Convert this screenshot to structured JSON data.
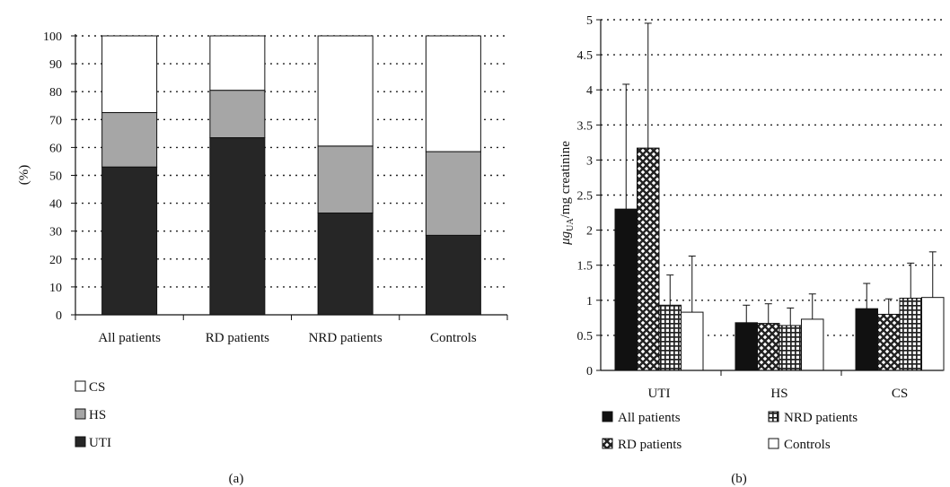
{
  "chart_data": [
    {
      "type": "bar",
      "stacked": true,
      "panel_label": "(a)",
      "ylabel": "(%)",
      "ylim": [
        0,
        100
      ],
      "y_ticks": [
        0,
        10,
        20,
        30,
        40,
        50,
        60,
        70,
        80,
        90,
        100
      ],
      "grid": "horizontal dotted",
      "legend_placement": "below-left",
      "categories": [
        "All patients",
        "RD patients",
        "NRD patients",
        "Controls"
      ],
      "series": [
        {
          "name": "UTI",
          "values": [
            53,
            63.5,
            36.5,
            28.5
          ],
          "fill": "#262626"
        },
        {
          "name": "HS",
          "values": [
            19.5,
            17,
            24,
            30
          ],
          "fill": "#a6a6a6"
        },
        {
          "name": "CS",
          "values": [
            27.5,
            19.5,
            39.5,
            41.5
          ],
          "fill": "#ffffff"
        }
      ],
      "legend_order": [
        "CS",
        "HS",
        "UTI"
      ]
    },
    {
      "type": "bar",
      "stacked": false,
      "panel_label": "(b)",
      "ylabel_main": "μg",
      "ylabel_sub": "UA",
      "ylabel_rest": "/mg creatinine",
      "ylim": [
        0,
        5
      ],
      "y_ticks": [
        "0",
        "0.5",
        "1",
        "1.5",
        "2",
        "2.5",
        "3",
        "3.5",
        "4",
        "4.5",
        "5"
      ],
      "grid": "horizontal dotted",
      "legend_placement": "bottom",
      "categories": [
        "UTI",
        "HS",
        "CS"
      ],
      "series": [
        {
          "name": "All patients",
          "pattern": "solid",
          "values": [
            2.3,
            0.68,
            0.88
          ],
          "errors": [
            1.78,
            0.25,
            0.36
          ]
        },
        {
          "name": "RD patients",
          "pattern": "grid",
          "values": [
            3.17,
            0.67,
            0.8
          ],
          "errors": [
            1.78,
            0.28,
            0.22
          ]
        },
        {
          "name": "NRD patients",
          "pattern": "cross",
          "values": [
            0.93,
            0.64,
            1.03
          ],
          "errors": [
            0.43,
            0.25,
            0.5
          ]
        },
        {
          "name": "Controls",
          "pattern": "none",
          "values": [
            0.83,
            0.73,
            1.04
          ],
          "errors": [
            0.8,
            0.36,
            0.65
          ]
        }
      ],
      "legend_layout": [
        [
          "All patients",
          "NRD patients"
        ],
        [
          "RD patients",
          "Controls"
        ]
      ]
    }
  ]
}
